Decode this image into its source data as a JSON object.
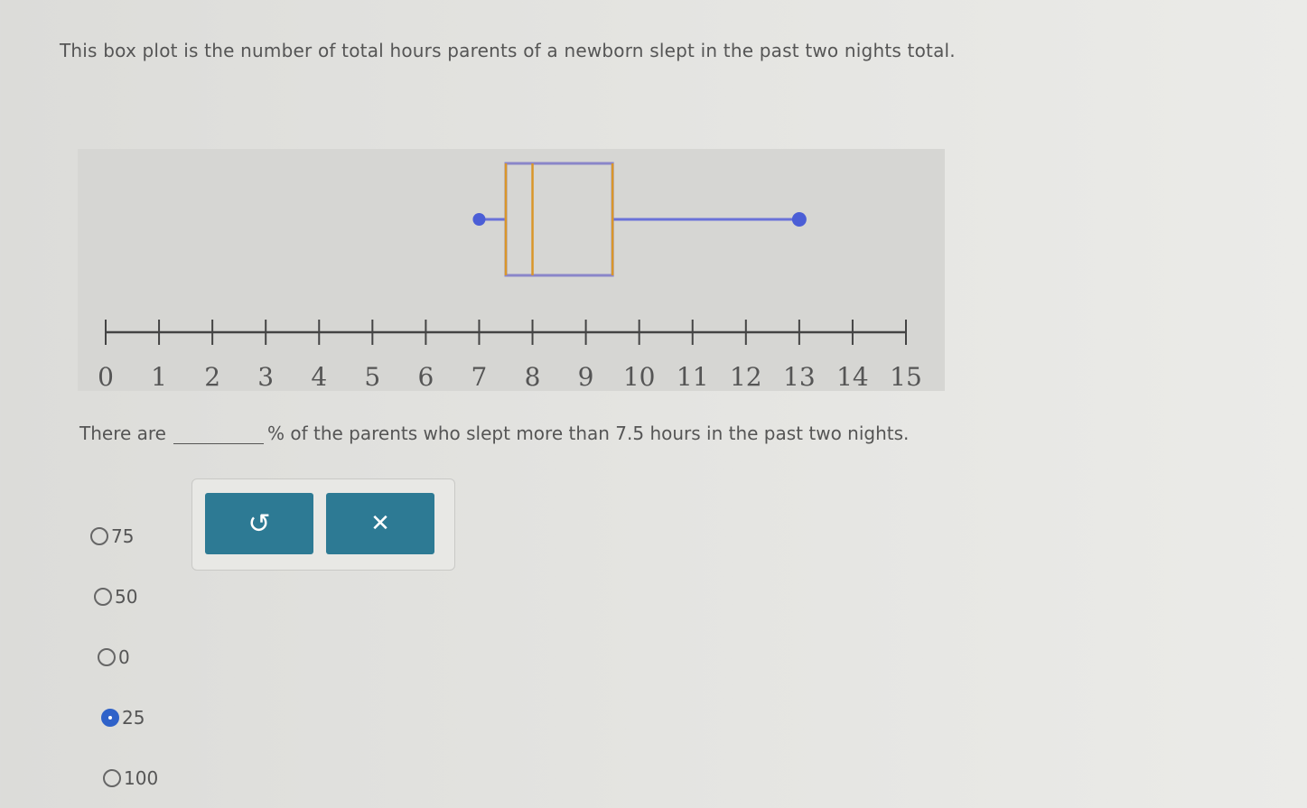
{
  "question": "This box plot is the number of total hours parents of a newborn slept in the past two nights total.",
  "chart_data": {
    "type": "boxplot",
    "min": 7,
    "q1": 7.5,
    "median": 8,
    "q3": 9.5,
    "max": 13,
    "xlim": [
      0,
      15
    ],
    "tick_labels": [
      "0",
      "1",
      "2",
      "3",
      "4",
      "5",
      "6",
      "7",
      "8",
      "9",
      "10",
      "11",
      "12",
      "13",
      "14",
      "15"
    ],
    "colors": {
      "box": "#d9962a",
      "whisker": "#6a72d8",
      "points": "#4b5ed6",
      "box_edge": "#8a86c9"
    }
  },
  "prompt": {
    "before": "There are",
    "after": "% of the parents who slept more than 7.5 hours in the past two nights."
  },
  "options": [
    {
      "label": "75",
      "selected": false
    },
    {
      "label": "50",
      "selected": false
    },
    {
      "label": "0",
      "selected": false
    },
    {
      "label": "25",
      "selected": true
    },
    {
      "label": "100",
      "selected": false
    }
  ],
  "toolbar": {
    "undo_icon": "undo-icon",
    "clear_icon": "close-icon",
    "undo_glyph": "↺",
    "clear_glyph": "✕",
    "button_color": "#2d7a94"
  }
}
